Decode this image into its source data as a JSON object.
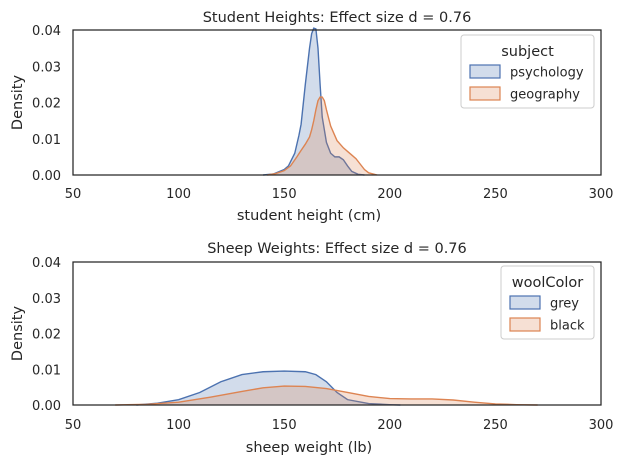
{
  "chart_data": [
    {
      "type": "area",
      "subtype": "kde",
      "title": "Student Heights: Effect size d = 0.76",
      "xlabel": "student height (cm)",
      "ylabel": "Density",
      "xlim": [
        50,
        300
      ],
      "ylim": [
        0,
        0.04
      ],
      "xticks": [
        "50",
        "100",
        "150",
        "200",
        "250",
        "300"
      ],
      "yticks": [
        "0.00",
        "0.01",
        "0.02",
        "0.03",
        "0.04"
      ],
      "legend_title": "subject",
      "legend_position": "top-right",
      "series": [
        {
          "name": "psychology",
          "color": "#4c72b0",
          "points": [
            [
              140,
              0
            ],
            [
              145,
              0.0003
            ],
            [
              150,
              0.0015
            ],
            [
              152,
              0.0025
            ],
            [
              155,
              0.006
            ],
            [
              157,
              0.011
            ],
            [
              158,
              0.014
            ],
            [
              160,
              0.025
            ],
            [
              162,
              0.035
            ],
            [
              163,
              0.039
            ],
            [
              164,
              0.0405
            ],
            [
              165,
              0.0403
            ],
            [
              166,
              0.035
            ],
            [
              167,
              0.025
            ],
            [
              168,
              0.016
            ],
            [
              170,
              0.009
            ],
            [
              172,
              0.006
            ],
            [
              174,
              0.005
            ],
            [
              175,
              0.005
            ],
            [
              176,
              0.005
            ],
            [
              178,
              0.0042
            ],
            [
              180,
              0.0025
            ],
            [
              182,
              0.001
            ],
            [
              185,
              0.0002
            ],
            [
              188,
              0
            ]
          ]
        },
        {
          "name": "geography",
          "color": "#dd8452",
          "points": [
            [
              142,
              0
            ],
            [
              146,
              0.0004
            ],
            [
              150,
              0.0012
            ],
            [
              153,
              0.0025
            ],
            [
              156,
              0.005
            ],
            [
              158,
              0.0068
            ],
            [
              160,
              0.0085
            ],
            [
              162,
              0.0105
            ],
            [
              163,
              0.0125
            ],
            [
              164,
              0.015
            ],
            [
              165,
              0.018
            ],
            [
              166,
              0.0205
            ],
            [
              167,
              0.0215
            ],
            [
              168,
              0.0215
            ],
            [
              169,
              0.0205
            ],
            [
              170,
              0.018
            ],
            [
              172,
              0.0135
            ],
            [
              175,
              0.0095
            ],
            [
              178,
              0.0075
            ],
            [
              180,
              0.0065
            ],
            [
              182,
              0.0055
            ],
            [
              184,
              0.0045
            ],
            [
              186,
              0.003
            ],
            [
              188,
              0.0015
            ],
            [
              190,
              0.0006
            ],
            [
              194,
              0
            ]
          ]
        }
      ]
    },
    {
      "type": "area",
      "subtype": "kde",
      "title": "Sheep Weights: Effect size d = 0.76",
      "xlabel": "sheep weight (lb)",
      "ylabel": "Density",
      "xlim": [
        50,
        300
      ],
      "ylim": [
        0,
        0.04
      ],
      "xticks": [
        "50",
        "100",
        "150",
        "200",
        "250",
        "300"
      ],
      "yticks": [
        "0.00",
        "0.01",
        "0.02",
        "0.03",
        "0.04"
      ],
      "legend_title": "woolColor",
      "legend_position": "top-right",
      "series": [
        {
          "name": "grey",
          "color": "#4c72b0",
          "points": [
            [
              80,
              0
            ],
            [
              90,
              0.0005
            ],
            [
              100,
              0.0015
            ],
            [
              110,
              0.0035
            ],
            [
              120,
              0.0065
            ],
            [
              130,
              0.0085
            ],
            [
              140,
              0.0093
            ],
            [
              150,
              0.0095
            ],
            [
              160,
              0.0093
            ],
            [
              165,
              0.0085
            ],
            [
              170,
              0.0065
            ],
            [
              175,
              0.0035
            ],
            [
              180,
              0.0015
            ],
            [
              190,
              0.0004
            ],
            [
              200,
              0.0001
            ],
            [
              205,
              0
            ]
          ]
        },
        {
          "name": "black",
          "color": "#dd8452",
          "points": [
            [
              70,
              0
            ],
            [
              85,
              0.0002
            ],
            [
              100,
              0.0008
            ],
            [
              115,
              0.0022
            ],
            [
              130,
              0.0038
            ],
            [
              140,
              0.0048
            ],
            [
              150,
              0.0053
            ],
            [
              160,
              0.0052
            ],
            [
              170,
              0.0046
            ],
            [
              180,
              0.0035
            ],
            [
              190,
              0.0024
            ],
            [
              200,
              0.0018
            ],
            [
              210,
              0.0017
            ],
            [
              220,
              0.0017
            ],
            [
              230,
              0.0014
            ],
            [
              240,
              0.0008
            ],
            [
              250,
              0.0003
            ],
            [
              260,
              0.0001
            ],
            [
              270,
              0
            ]
          ]
        }
      ]
    }
  ]
}
